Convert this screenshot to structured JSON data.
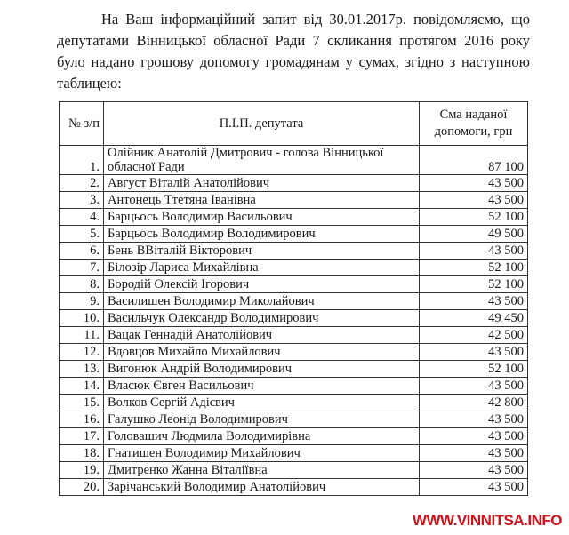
{
  "intro": {
    "line1": "На Ваш інформаційний запит від 30.01.2017р. повідомляємо, що",
    "rest": "депутатами Вінницької обласної Ради 7 скликання протягом 2016 року було надано грошову допомогу громадянам у сумах, згідно з наступною таблицею:"
  },
  "table": {
    "headers": [
      "№ з/п",
      "П.І.П. депутата",
      "Сма наданої допомоги, грн"
    ],
    "rows": [
      {
        "num": "1.",
        "name": "Олійник Анатолій Дмитрович - голова Вінницької обласної Ради",
        "amount": "87 100"
      },
      {
        "num": "2.",
        "name": "Август Віталій Анатолійович",
        "amount": "43 500"
      },
      {
        "num": "3.",
        "name": "Антонець Ттетяна Іванівна",
        "amount": "43 500"
      },
      {
        "num": "4.",
        "name": "Барцьось Володимир Васильович",
        "amount": "52 100"
      },
      {
        "num": "5.",
        "name": "Барцьось Володимир Володимирович",
        "amount": "49 500"
      },
      {
        "num": "6.",
        "name": "Бень ВВіталій Вікторович",
        "amount": "43 500"
      },
      {
        "num": "7.",
        "name": "Білозір Лариса Михайлівна",
        "amount": "52 100"
      },
      {
        "num": "8.",
        "name": "Бородій Олексій Ігорович",
        "amount": "52 100"
      },
      {
        "num": "9.",
        "name": "Василишен Володимир Миколайович",
        "amount": "43 500"
      },
      {
        "num": "10.",
        "name": "Васильчук Олександр Володимирович",
        "amount": "49 450"
      },
      {
        "num": "11.",
        "name": "Вацак Геннадій Анатолійович",
        "amount": "42 500"
      },
      {
        "num": "12.",
        "name": "Вдовцов Михайло Михайлович",
        "amount": "43 500"
      },
      {
        "num": "13.",
        "name": "Вигонюк Андрій Володимирович",
        "amount": "52 100"
      },
      {
        "num": "14.",
        "name": "Власюк Євген Васильович",
        "amount": "43 500"
      },
      {
        "num": "15.",
        "name": "Волков Сергій Адієвич",
        "amount": "42 800"
      },
      {
        "num": "16.",
        "name": "Галушко Леонід Володимирович",
        "amount": "43 500"
      },
      {
        "num": "17.",
        "name": "Головашич Людмила Володимирівна",
        "amount": "43 500"
      },
      {
        "num": "18.",
        "name": "Гнатишен Володимир Михайлович",
        "amount": "43 500"
      },
      {
        "num": "19.",
        "name": "Дмитренко Жанна Віталіївна",
        "amount": "43 500"
      },
      {
        "num": "20.",
        "name": "Зарічанський Володимир Анатолійович",
        "amount": "43 500"
      }
    ]
  },
  "watermark": "WWW.VINNITSA.INFO",
  "colors": {
    "watermark": "#d0121b"
  }
}
